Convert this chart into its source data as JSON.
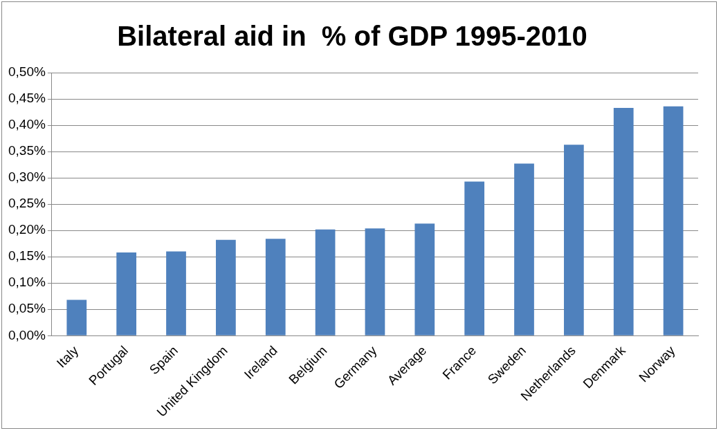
{
  "chart_data": {
    "type": "bar",
    "title": "Bilateral aid in  % of GDP 1995-2010",
    "categories": [
      "Italy",
      "Portugal",
      "Spain",
      "United Kingdom",
      "Ireland",
      "Belgium",
      "Germany",
      "Average",
      "France",
      "Sweden",
      "Netherlands",
      "Denmark",
      "Norway"
    ],
    "values": [
      0.068,
      0.158,
      0.16,
      0.182,
      0.184,
      0.202,
      0.204,
      0.213,
      0.293,
      0.327,
      0.363,
      0.433,
      0.436
    ],
    "color": "#4f81bd",
    "ylim": [
      0,
      0.5
    ],
    "yticks": [
      {
        "value": 0,
        "label": "0,00%"
      },
      {
        "value": 0.05,
        "label": "0,05%"
      },
      {
        "value": 0.1,
        "label": "0,10%"
      },
      {
        "value": 0.15,
        "label": "0,15%"
      },
      {
        "value": 0.2,
        "label": "0,20%"
      },
      {
        "value": 0.25,
        "label": "0,25%"
      },
      {
        "value": 0.3,
        "label": "0,30%"
      },
      {
        "value": 0.35,
        "label": "0,35%"
      },
      {
        "value": 0.4,
        "label": "0,40%"
      },
      {
        "value": 0.45,
        "label": "0,45%"
      },
      {
        "value": 0.5,
        "label": "0,50%"
      }
    ],
    "grid": "y",
    "legend": false
  }
}
